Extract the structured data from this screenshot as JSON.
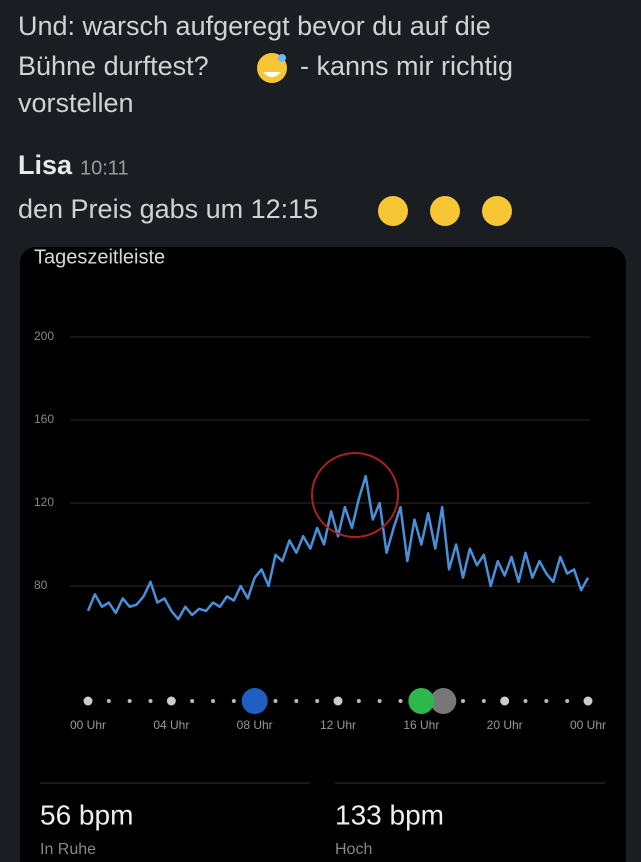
{
  "messages": [
    {
      "parts": [
        "Und: warsch aufgeregt bevor du auf die",
        "Bühne durftest?",
        "- kanns mir richtig",
        "vorstellen"
      ]
    },
    {
      "author": "Lisa",
      "time": "10:11",
      "text": "den Preis gabs um 12:15"
    }
  ],
  "chart_data": {
    "type": "line",
    "title": "Tageszeitleiste",
    "x": [
      0,
      0.33,
      0.67,
      1,
      1.33,
      1.67,
      2,
      2.33,
      2.67,
      3,
      3.33,
      3.67,
      4,
      4.33,
      4.67,
      5,
      5.33,
      5.67,
      6,
      6.33,
      6.67,
      7,
      7.33,
      7.67,
      8,
      8.33,
      8.67,
      9,
      9.33,
      9.67,
      10,
      10.33,
      10.67,
      11,
      11.33,
      11.67,
      12,
      12.33,
      12.67,
      13,
      13.33,
      13.67,
      14,
      14.33,
      14.67,
      15,
      15.33,
      15.67,
      16,
      16.33,
      16.67,
      17,
      17.33,
      17.67,
      18,
      18.33,
      18.67,
      19,
      19.33,
      19.67,
      20,
      20.33,
      20.67,
      21,
      21.33,
      21.67,
      22,
      22.33,
      22.67,
      23,
      23.33,
      23.67,
      24
    ],
    "series": [
      {
        "color": "#4a90d9",
        "values": [
          68,
          76,
          70,
          72,
          67,
          74,
          70,
          71,
          75,
          82,
          72,
          74,
          68,
          64,
          70,
          66,
          69,
          68,
          72,
          70,
          75,
          73,
          80,
          74,
          84,
          88,
          80,
          95,
          92,
          102,
          96,
          104,
          98,
          108,
          100,
          116,
          104,
          118,
          108,
          122,
          133,
          112,
          120,
          96,
          108,
          118,
          92,
          112,
          100,
          115,
          98,
          118,
          88,
          100,
          84,
          98,
          90,
          95,
          80,
          92,
          85,
          94,
          82,
          96,
          84,
          92,
          86,
          82,
          94,
          86,
          88,
          78,
          84
        ]
      }
    ],
    "xlim": [
      0,
      24
    ],
    "xticks": [
      {
        "value": 0,
        "label": "00 Uhr"
      },
      {
        "value": 4,
        "label": "04 Uhr"
      },
      {
        "value": 8,
        "label": "08 Uhr"
      },
      {
        "value": 12,
        "label": "12 Uhr"
      },
      {
        "value": 16,
        "label": "16 Uhr"
      },
      {
        "value": 20,
        "label": "20 Uhr"
      },
      {
        "value": 24,
        "label": "00 Uhr"
      }
    ],
    "ylim": [
      40,
      200
    ],
    "yticks": [
      80,
      120,
      160,
      200
    ],
    "grid": true
  },
  "stats": [
    {
      "value": "56 bpm",
      "label": "In Ruhe"
    },
    {
      "value": "133 bpm",
      "label": "Hoch"
    }
  ]
}
